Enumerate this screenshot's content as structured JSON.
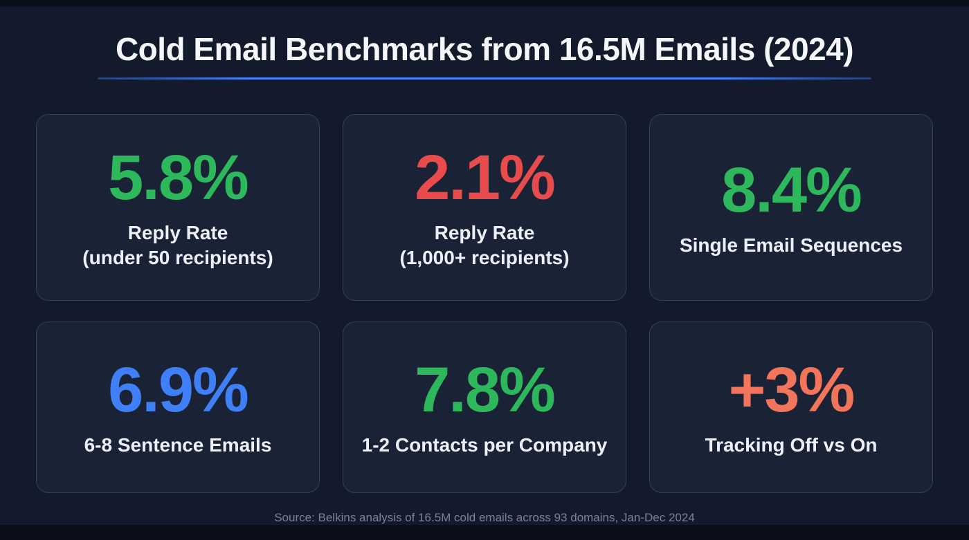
{
  "header": {
    "title": "Cold Email Benchmarks from 16.5M Emails (2024)"
  },
  "footer": {
    "source": "Source: Belkins analysis of 16.5M cold emails across 93 domains, Jan-Dec 2024"
  },
  "colors": {
    "background": "#121a2b",
    "edge_strip": "#0a0f1b",
    "card_background": "#1a2336",
    "card_border": "#33405c",
    "title_text": "#f5f7fa",
    "label_text": "#edf0f6",
    "underline_accent": "#4a86ff",
    "source_text": "#7b8496",
    "green": "#2eb85c",
    "red": "#e84b4b",
    "blue": "#3f7ff7",
    "orange": "#f2745a"
  },
  "stats": [
    {
      "value": "5.8%",
      "label_line1": "Reply Rate",
      "label_line2": "(under 50 recipients)",
      "color": "#2eb85c"
    },
    {
      "value": "2.1%",
      "label_line1": "Reply Rate",
      "label_line2": "(1,000+ recipients)",
      "color": "#e84b4b"
    },
    {
      "value": "8.4%",
      "label_line1": "Single Email Sequences",
      "label_line2": "",
      "color": "#2eb85c"
    },
    {
      "value": "6.9%",
      "label_line1": "6-8 Sentence Emails",
      "label_line2": "",
      "color": "#3f7ff7"
    },
    {
      "value": "7.8%",
      "label_line1": "1-2 Contacts per Company",
      "label_line2": "",
      "color": "#2eb85c"
    },
    {
      "value": "+3%",
      "label_line1": "Tracking Off vs On",
      "label_line2": "",
      "color": "#f2745a"
    }
  ],
  "chart_data": {
    "type": "table",
    "title": "Cold Email Benchmarks from 16.5M Emails (2024)",
    "categories": [
      "Reply Rate (under 50 recipients)",
      "Reply Rate (1,000+ recipients)",
      "Single Email Sequences",
      "6-8 Sentence Emails",
      "1-2 Contacts per Company",
      "Tracking Off vs On"
    ],
    "values": [
      5.8,
      2.1,
      8.4,
      6.9,
      7.8,
      3.0
    ],
    "value_labels": [
      "5.8%",
      "2.1%",
      "8.4%",
      "6.9%",
      "7.8%",
      "+3%"
    ],
    "unit": "%",
    "source": "Source: Belkins analysis of 16.5M cold emails across 93 domains, Jan-Dec 2024"
  }
}
